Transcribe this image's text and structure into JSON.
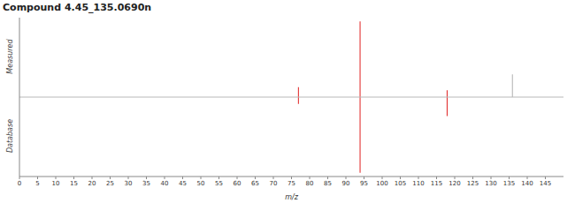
{
  "chart_data": {
    "type": "bar",
    "title": "Compound 4.45_135.0690n",
    "x_label": "m/z",
    "x": [
      77,
      94,
      118,
      136
    ],
    "series": [
      {
        "name": "Measured",
        "values": [
          0.13,
          1.0,
          0.09,
          0.3
        ],
        "colors": [
          "#e02020",
          "#e02020",
          "#e02020",
          "#b0b0b0"
        ]
      },
      {
        "name": "Database",
        "values": [
          -0.09,
          -1.0,
          -0.25,
          null
        ],
        "colors": [
          "#e02020",
          "#e02020",
          "#e02020",
          "#e02020"
        ]
      }
    ],
    "xlim": [
      0,
      150
    ],
    "xticks": [
      0,
      5,
      10,
      15,
      20,
      25,
      30,
      35,
      40,
      45,
      50,
      55,
      60,
      65,
      70,
      75,
      80,
      85,
      90,
      95,
      100,
      105,
      110,
      115,
      120,
      125,
      130,
      135,
      140,
      145
    ],
    "ylim": [
      -1.05,
      1.05
    ],
    "yticks": [
      0
    ],
    "stacked": true,
    "grid": false,
    "tick_labels": "x"
  }
}
